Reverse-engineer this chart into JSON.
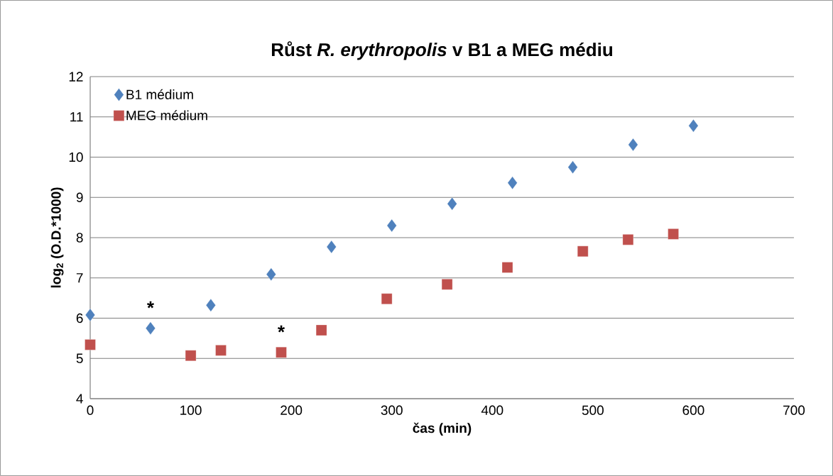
{
  "chart_data": {
    "type": "scatter",
    "title": "Růst *R. erythropolis* v B1 a MEG médiu",
    "xlabel": "čas (min)",
    "ylabel": "log$_{2}$ (O.D.*1000)",
    "series": [
      {
        "name": "B1 médium",
        "color": "#4f81bd",
        "marker": "diamond",
        "x": [
          0,
          60,
          120,
          180,
          240,
          300,
          360,
          420,
          480,
          540,
          600
        ],
        "values": [
          6.08,
          5.75,
          6.32,
          7.09,
          7.77,
          8.3,
          8.84,
          9.36,
          9.75,
          10.31,
          10.78
        ]
      },
      {
        "name": "MEG médium",
        "color": "#c0504d",
        "marker": "square",
        "x": [
          0,
          100,
          130,
          190,
          230,
          295,
          355,
          415,
          490,
          535,
          580
        ],
        "values": [
          5.34,
          5.07,
          5.2,
          5.15,
          5.7,
          6.48,
          6.84,
          7.26,
          7.66,
          7.95,
          8.09
        ]
      }
    ],
    "annotations": [
      {
        "text": "*",
        "x": 60,
        "y": 5.75
      },
      {
        "text": "*",
        "x": 190,
        "y": 5.15
      }
    ],
    "xlim": [
      0,
      700
    ],
    "xticks": [
      0,
      100,
      200,
      300,
      400,
      500,
      600,
      700
    ],
    "ylim": [
      4,
      12
    ],
    "yticks": [
      4,
      5,
      6,
      7,
      8,
      9,
      10,
      11,
      12
    ],
    "grid": "y",
    "legend": "top left"
  }
}
